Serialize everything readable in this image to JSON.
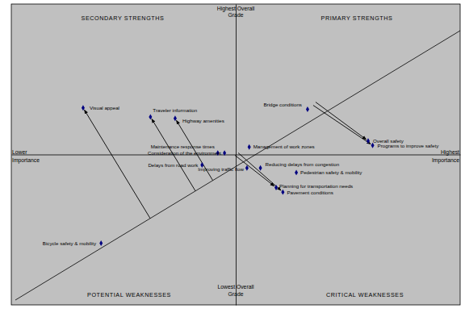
{
  "chart_data": {
    "type": "scatter",
    "x": [
      -6.8,
      -3.8,
      -2.7,
      3.2,
      5.9,
      6.1,
      -0.8,
      -0.5,
      0.6,
      -1.5,
      0.5,
      1.1,
      2.7,
      1.8,
      2.1,
      -6.0
    ],
    "values": [
      3.1,
      2.5,
      2.4,
      3.0,
      0.9,
      0.6,
      0.1,
      0.1,
      0.5,
      -0.7,
      -0.9,
      -0.9,
      -1.2,
      -2.2,
      -2.5,
      -5.9
    ],
    "labels": [
      "Visual appeal",
      "Traveler information",
      "Highway amenities",
      "Bridge conditions",
      "Overall safety",
      "Programs to improve safety",
      "Maintenance response times",
      "Consideration of the environment",
      "Management of work zones",
      "Delays from road work",
      "Improving traffic flow",
      "Reducing delays from congestion",
      "Pedestrian safety & mobility",
      "Planning for transportation needs",
      "Pavement conditions",
      "Bicycle safety & mobility"
    ],
    "xlim": [
      -10,
      10
    ],
    "ylim": [
      -10,
      10
    ],
    "xticks": [],
    "yticks": [],
    "tick_labels": false,
    "grid": false,
    "color": "#000080",
    "marker": "diamond",
    "y_top_label": [
      "Highest Overall",
      "Grade"
    ],
    "y_bottom_label": [
      "Lowest Overall",
      "Grade"
    ],
    "x_left_label": [
      "Lower",
      "Importance"
    ],
    "x_right_label": [
      "Highest",
      "Importance"
    ],
    "quadrants": {
      "top_left": "SECONDARY STRENGTHS",
      "top_right": "PRIMARY STRENGTHS",
      "bottom_left": "POTENTIAL WEAKNESSES",
      "bottom_right": "CRITICAL WEAKNESSES"
    }
  }
}
